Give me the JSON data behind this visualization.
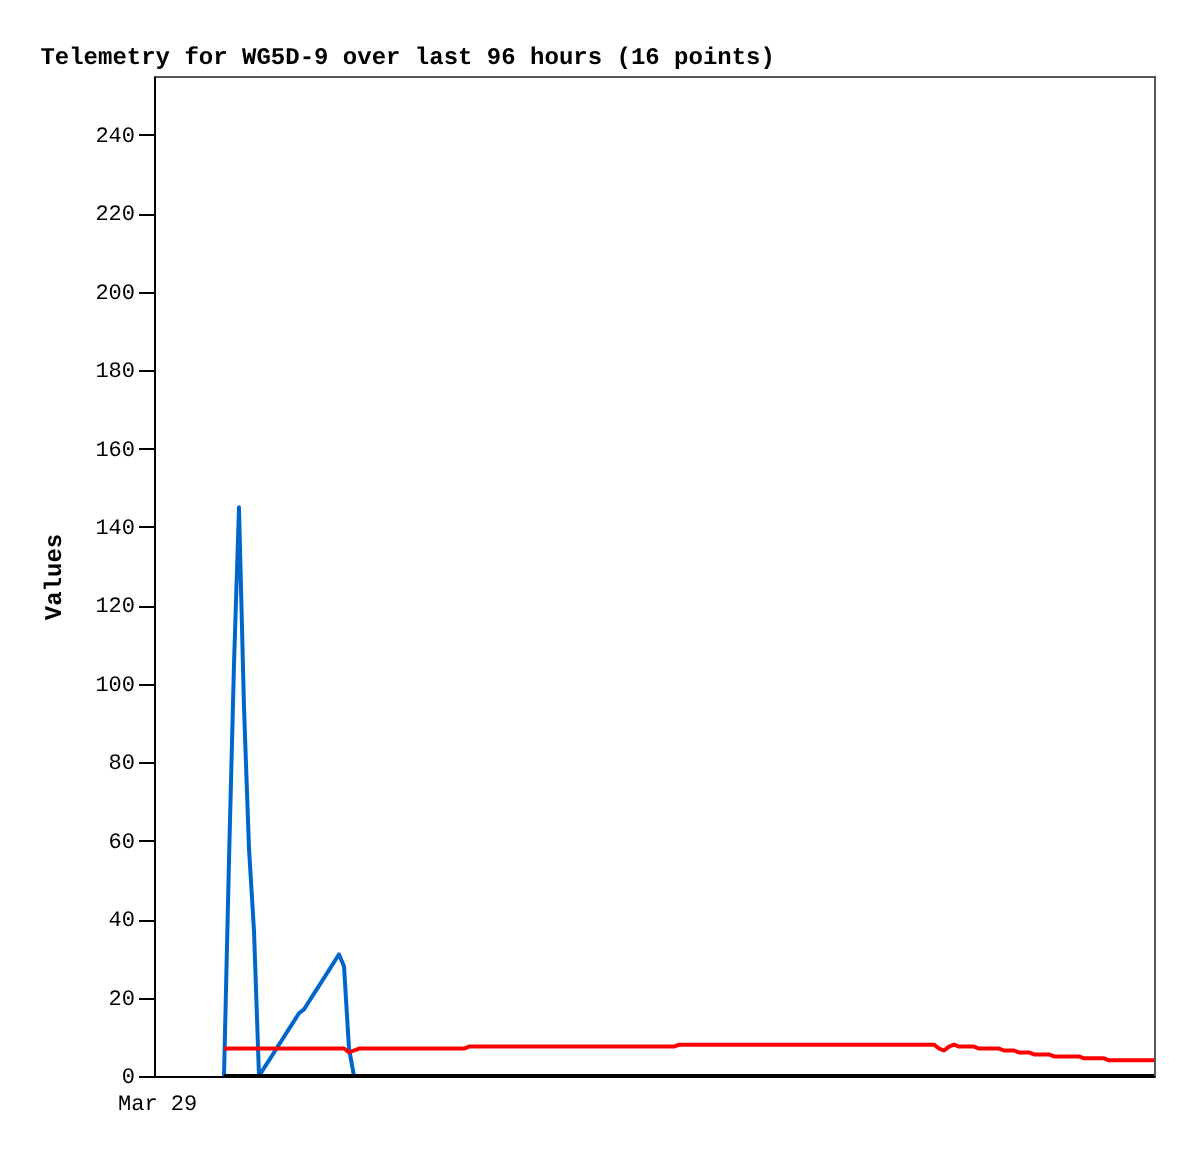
{
  "chart_data": {
    "type": "line",
    "title": "Telemetry for WG5D-9 over last 96 hours (16 points)",
    "ylabel": "Values",
    "annotations": [
      "Mar 29"
    ],
    "categories": [
      null,
      null,
      null,
      null,
      null,
      null,
      null,
      null,
      null,
      null,
      null,
      null,
      null,
      null,
      null,
      null,
      null,
      null,
      null,
      null,
      null,
      null,
      null,
      null,
      null,
      null,
      null,
      null,
      null,
      null,
      null,
      null,
      null,
      null,
      null,
      null,
      null,
      null,
      null,
      null,
      null,
      null,
      null,
      null,
      null,
      null,
      null,
      null,
      null,
      null,
      null,
      null,
      null,
      null,
      null,
      null,
      null,
      null,
      null,
      null,
      null,
      null,
      null,
      null,
      null,
      null,
      null,
      null,
      null,
      null,
      null,
      null,
      null,
      null,
      null,
      null,
      null,
      null,
      null,
      null,
      null,
      null,
      null,
      null,
      null,
      null,
      null,
      null,
      null,
      null,
      null,
      null,
      null,
      null,
      null,
      null,
      null,
      null,
      null,
      null,
      null,
      null,
      null,
      null,
      null,
      null,
      null,
      null,
      null,
      null,
      null,
      null,
      null,
      null,
      null,
      null,
      null,
      null,
      null,
      null,
      null,
      null,
      null,
      null,
      null,
      null,
      null,
      null,
      null,
      null,
      null,
      null,
      null,
      null,
      null,
      null,
      null,
      null,
      null,
      null,
      null,
      null,
      null,
      null,
      null,
      null,
      null,
      null,
      null,
      null,
      null,
      null,
      null,
      null,
      null,
      null,
      null,
      null,
      null,
      null,
      null,
      null,
      null,
      null,
      null,
      null,
      null,
      null,
      null,
      null,
      null,
      null,
      null,
      null,
      null,
      null,
      null,
      null,
      null,
      null,
      null,
      null,
      null,
      null,
      null,
      null,
      null,
      null,
      null,
      null,
      null,
      null,
      null,
      null,
      null,
      null,
      null,
      null,
      null,
      null,
      null
    ],
    "ylim": [
      0,
      255
    ],
    "yticks": [
      0,
      20,
      40,
      60,
      80,
      100,
      120,
      140,
      160,
      180,
      200,
      220,
      240
    ],
    "line_style": "solid",
    "series": [
      {
        "color": "#0066cc",
        "values": [
          null,
          null,
          null,
          null,
          null,
          null,
          null,
          null,
          null,
          null,
          null,
          null,
          null,
          null,
          0,
          55,
          105,
          145,
          94,
          58,
          37,
          0,
          2,
          4,
          6,
          8,
          10,
          12,
          14,
          16,
          17,
          19,
          21,
          23,
          25,
          27,
          29,
          31,
          28,
          7,
          0,
          null,
          null,
          null,
          null,
          null,
          null,
          null,
          null,
          null,
          null,
          null,
          null,
          null,
          null,
          null,
          null,
          null,
          null,
          null,
          null,
          null,
          null,
          null,
          null,
          null,
          null,
          null,
          null,
          null,
          null,
          null,
          null,
          null,
          null,
          null,
          null,
          null,
          null,
          null,
          null,
          null,
          null,
          null,
          null,
          null,
          null,
          null,
          null,
          null,
          null,
          null,
          null,
          null,
          null,
          null,
          null,
          null,
          null,
          null,
          null,
          null,
          null,
          null,
          null,
          null,
          null,
          null,
          null,
          null,
          null,
          null,
          null,
          null,
          null,
          null,
          null,
          null,
          null,
          null,
          null,
          null,
          null,
          null,
          null,
          null,
          null,
          null,
          null,
          null,
          null,
          null,
          null,
          null,
          null,
          null,
          null,
          null,
          null,
          null,
          null,
          null,
          null,
          null,
          null,
          null,
          null,
          null,
          null,
          null,
          null,
          null,
          null,
          null,
          null,
          null,
          null,
          null,
          null,
          null,
          null,
          null,
          null,
          null,
          null,
          null,
          null,
          null,
          null,
          null,
          null,
          null,
          null,
          null,
          null,
          null,
          null,
          null,
          null,
          null,
          null,
          null,
          null,
          null,
          null,
          null,
          null,
          null,
          null,
          null,
          null,
          null,
          null,
          null,
          null,
          null,
          null,
          null,
          null,
          null,
          null
        ]
      },
      {
        "color": "#ff0000",
        "values": [
          null,
          null,
          null,
          null,
          null,
          null,
          null,
          null,
          null,
          null,
          null,
          null,
          null,
          null,
          7,
          7,
          7,
          7,
          7,
          7,
          7,
          7,
          7,
          7,
          7,
          7,
          7,
          7,
          7,
          7,
          7,
          7,
          7,
          7,
          7,
          7,
          7,
          7,
          7,
          6,
          6.5,
          7,
          7,
          7,
          7,
          7,
          7,
          7,
          7,
          7,
          7,
          7,
          7,
          7,
          7,
          7,
          7,
          7,
          7,
          7,
          7,
          7,
          7,
          7.5,
          7.5,
          7.5,
          7.5,
          7.5,
          7.5,
          7.5,
          7.5,
          7.5,
          7.5,
          7.5,
          7.5,
          7.5,
          7.5,
          7.5,
          7.5,
          7.5,
          7.5,
          7.5,
          7.5,
          7.5,
          7.5,
          7.5,
          7.5,
          7.5,
          7.5,
          7.5,
          7.5,
          7.5,
          7.5,
          7.5,
          7.5,
          7.5,
          7.5,
          7.5,
          7.5,
          7.5,
          7.5,
          7.5,
          7.5,
          7.5,
          7.5,
          8,
          8,
          8,
          8,
          8,
          8,
          8,
          8,
          8,
          8,
          8,
          8,
          8,
          8,
          8,
          8,
          8,
          8,
          8,
          8,
          8,
          8,
          8,
          8,
          8,
          8,
          8,
          8,
          8,
          8,
          8,
          8,
          8,
          8,
          8,
          8,
          8,
          8,
          8,
          8,
          8,
          8,
          8,
          8,
          8,
          8,
          8,
          8,
          8,
          8,
          8,
          8,
          7,
          6.5,
          7.5,
          8,
          7.5,
          7.5,
          7.5,
          7.5,
          7,
          7,
          7,
          7,
          7,
          6.5,
          6.5,
          6.5,
          6,
          6,
          6,
          5.5,
          5.5,
          5.5,
          5.5,
          5,
          5,
          5,
          5,
          5,
          5,
          4.5,
          4.5,
          4.5,
          4.5,
          4.5,
          4,
          4,
          4,
          4,
          4,
          4,
          4,
          4,
          4,
          4
        ]
      },
      {
        "color": "#000000",
        "values": [
          null,
          null,
          null,
          null,
          null,
          null,
          null,
          null,
          null,
          null,
          null,
          null,
          null,
          null,
          0,
          0,
          0,
          0,
          0,
          0,
          0,
          0,
          0,
          0,
          0,
          0,
          0,
          0,
          0,
          0,
          0,
          0,
          0,
          0,
          0,
          0,
          0,
          0,
          0,
          0,
          0,
          0,
          0,
          0,
          0,
          0,
          0,
          0,
          0,
          0,
          0,
          0,
          0,
          0,
          0,
          0,
          0,
          0,
          0,
          0,
          0,
          0,
          0,
          0,
          0,
          0,
          0,
          0,
          0,
          0,
          0,
          0,
          0,
          0,
          0,
          0,
          0,
          0,
          0,
          0,
          0,
          0,
          0,
          0,
          0,
          0,
          0,
          0,
          0,
          0,
          0,
          0,
          0,
          0,
          0,
          0,
          0,
          0,
          0,
          0,
          0,
          0,
          0,
          0,
          0,
          0,
          0,
          0,
          0,
          0,
          0,
          0,
          0,
          0,
          0,
          0,
          0,
          0,
          0,
          0,
          0,
          0,
          0,
          0,
          0,
          0,
          0,
          0,
          0,
          0,
          0,
          0,
          0,
          0,
          0,
          0,
          0,
          0,
          0,
          0,
          0,
          0,
          0,
          0,
          0,
          0,
          0,
          0,
          0,
          0,
          0,
          0,
          0,
          0,
          0,
          0,
          0,
          0,
          0,
          0,
          0,
          0,
          0,
          0,
          0,
          0,
          0,
          0,
          0,
          0,
          0,
          0,
          0,
          0,
          0,
          0,
          0,
          0,
          0,
          0,
          0,
          0,
          0,
          0,
          0,
          0,
          0,
          0,
          0,
          0,
          0,
          0,
          0,
          0,
          0,
          0,
          0,
          0,
          0,
          0,
          0
        ]
      }
    ]
  }
}
